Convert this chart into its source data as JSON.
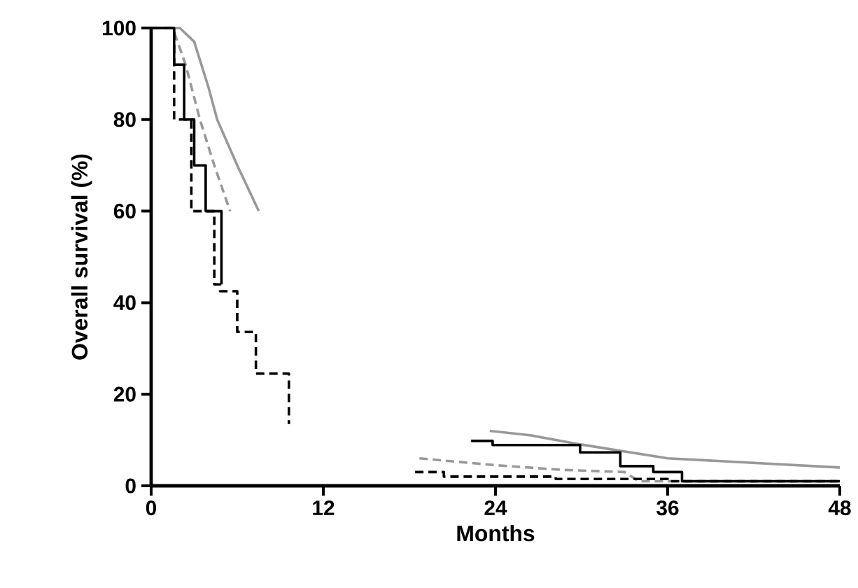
{
  "chart_data": {
    "type": "line",
    "xlabel": "Months",
    "ylabel": "Overall survival (%)",
    "xlim": [
      0,
      48
    ],
    "xticks": [
      0,
      12,
      24,
      36,
      48
    ],
    "ylim": [
      0,
      100
    ],
    "yticks": [
      0,
      20,
      40,
      60,
      80,
      100
    ],
    "grid": false,
    "marker": "none",
    "series": [
      {
        "color": "#999999",
        "line_style": "solid",
        "x": [
          0,
          2,
          3,
          4,
          4.6,
          6,
          7.5,
          15,
          23.6,
          26.5,
          30,
          36,
          42,
          48
        ],
        "values": [
          100,
          100,
          97,
          87,
          80,
          70,
          60,
          null,
          12,
          11,
          9,
          6,
          5,
          4
        ]
      },
      {
        "color": "#999999",
        "line_style": "dashed",
        "x": [
          0,
          1.5,
          2.4,
          3.4,
          4.4,
          5.5,
          12,
          18.7,
          24,
          28.5,
          33,
          34,
          48
        ],
        "values": [
          100,
          100,
          92,
          80,
          70,
          60,
          null,
          6,
          4.5,
          3.5,
          3,
          1,
          1
        ]
      },
      {
        "type": "step",
        "color": "#000000",
        "line_style": "solid",
        "x": [
          0,
          1,
          1.6,
          2.3,
          3,
          3.8,
          4.9,
          12,
          22.3,
          23.8,
          29.9,
          32.7,
          35,
          37,
          48
        ],
        "values": [
          100,
          100,
          92,
          80,
          70,
          60,
          44,
          null,
          9.8,
          8.9,
          7.3,
          4.3,
          3,
          1,
          1
        ]
      },
      {
        "type": "step",
        "color": "#000000",
        "line_style": "dashed",
        "x": [
          0,
          0.8,
          1.6,
          2.8,
          4.4,
          4.8,
          6,
          7.3,
          9.6,
          14,
          18.4,
          20.4,
          28.2,
          36,
          48
        ],
        "values": [
          100,
          100,
          80,
          60,
          44,
          42.5,
          33.6,
          24.5,
          13.5,
          null,
          3,
          2,
          1.5,
          1,
          1
        ]
      }
    ]
  }
}
